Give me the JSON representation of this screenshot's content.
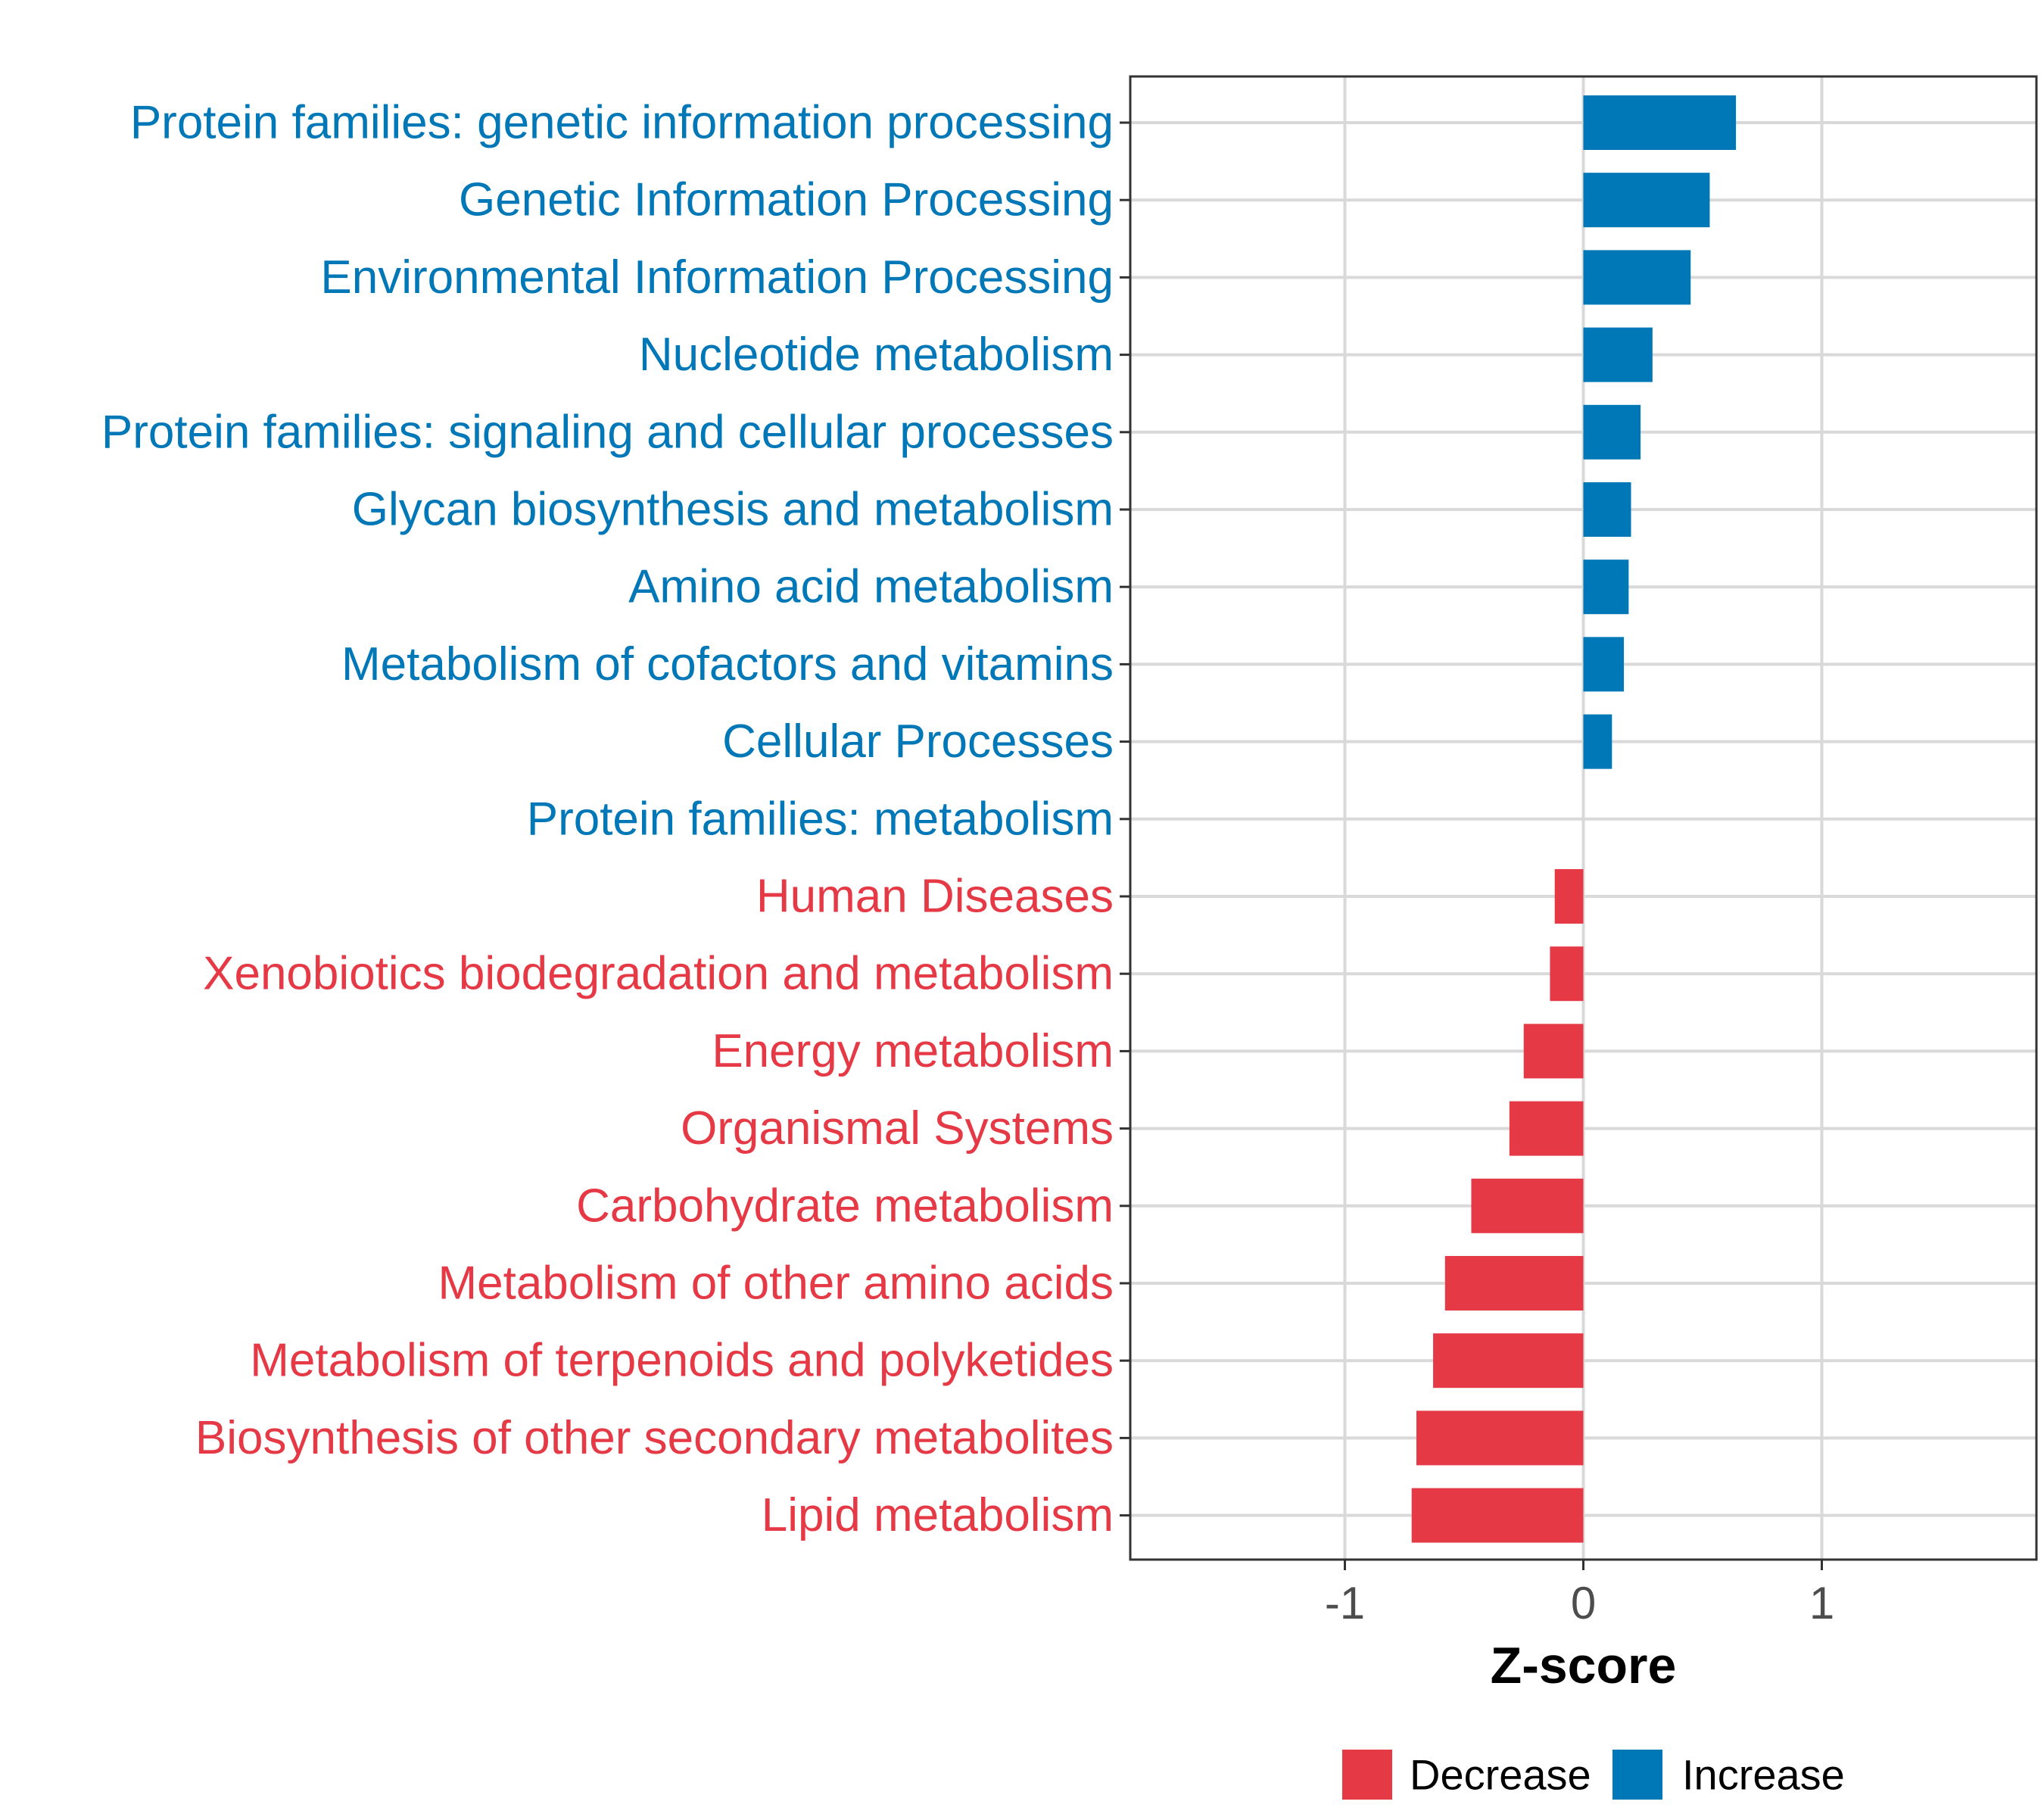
{
  "chart_data": {
    "type": "bar",
    "orientation": "horizontal",
    "title": "",
    "xlabel": "Z-score",
    "ylabel": "",
    "xlim": [
      -1.9,
      1.9
    ],
    "xticks": [
      -1,
      0,
      1
    ],
    "xtick_labels": [
      "-1",
      "0",
      "1"
    ],
    "grid": true,
    "legend": {
      "position": "bottom",
      "entries": [
        {
          "label": "Decrease",
          "color": "#e63946"
        },
        {
          "label": "Increase",
          "color": "#0077b6"
        }
      ]
    },
    "categories": [
      "Protein families: genetic information processing",
      "Genetic Information Processing",
      "Environmental Information Processing",
      "Nucleotide metabolism",
      "Protein families: signaling and cellular processes",
      "Glycan biosynthesis and metabolism",
      "Amino acid metabolism",
      "Metabolism of cofactors and vitamins",
      "Cellular Processes",
      "Protein families: metabolism",
      "Human Diseases",
      "Xenobiotics biodegradation and metabolism",
      "Energy metabolism",
      "Organismal Systems",
      "Carbohydrate metabolism",
      "Metabolism of other amino acids",
      "Metabolism of terpenoids and polyketides",
      "Biosynthesis of other secondary metabolites",
      "Lipid metabolism"
    ],
    "values": [
      0.64,
      0.53,
      0.45,
      0.29,
      0.24,
      0.2,
      0.19,
      0.17,
      0.12,
      0.0,
      -0.12,
      -0.14,
      -0.25,
      -0.31,
      -0.47,
      -0.58,
      -0.63,
      -0.7,
      -0.72
    ],
    "groups": [
      "Increase",
      "Increase",
      "Increase",
      "Increase",
      "Increase",
      "Increase",
      "Increase",
      "Increase",
      "Increase",
      "Increase",
      "Decrease",
      "Decrease",
      "Decrease",
      "Decrease",
      "Decrease",
      "Decrease",
      "Decrease",
      "Decrease",
      "Decrease"
    ]
  }
}
